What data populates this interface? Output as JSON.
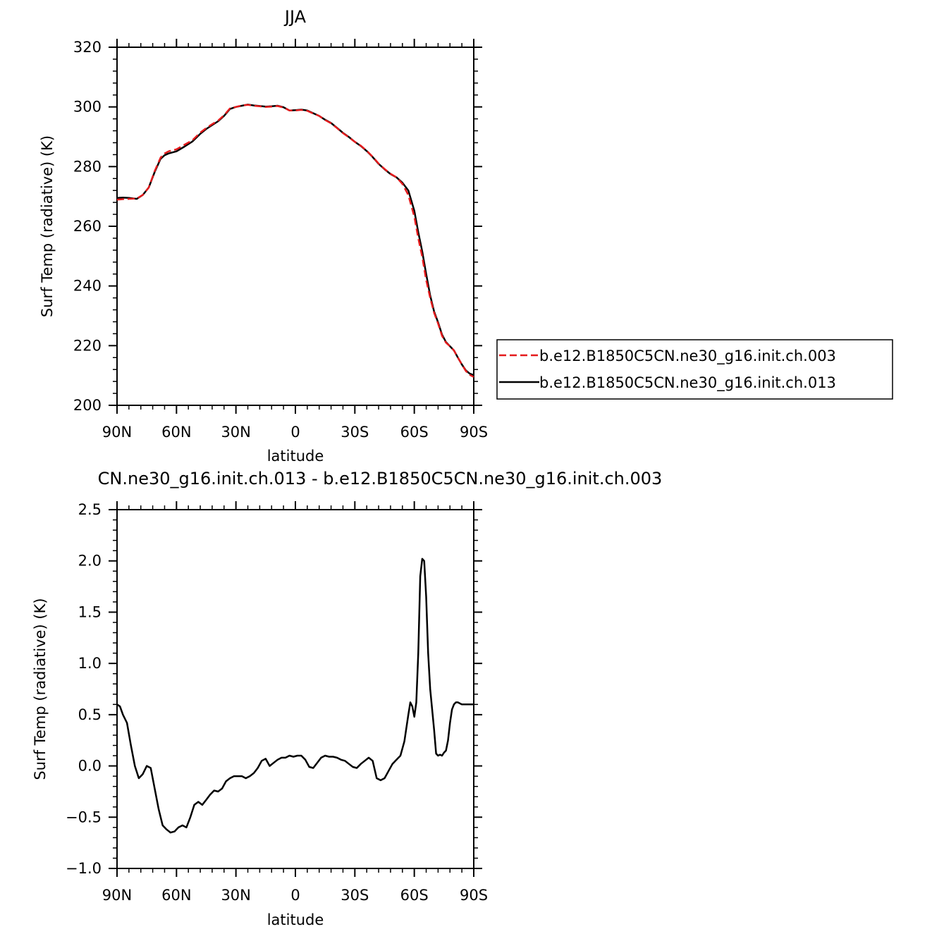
{
  "chart_data": [
    {
      "type": "line",
      "title": "JJA",
      "xlabel": "latitude",
      "ylabel": "Surf Temp (radiative) (K)",
      "xlim": [
        90,
        -90
      ],
      "ylim": [
        200,
        320
      ],
      "x_ticks": [
        90,
        60,
        30,
        0,
        -30,
        -60,
        -90
      ],
      "x_tick_labels": [
        "90N",
        "60N",
        "30N",
        "0",
        "30S",
        "60S",
        "90S"
      ],
      "y_ticks": [
        200,
        220,
        240,
        260,
        280,
        300,
        320
      ],
      "y_tick_labels": [
        "200",
        "220",
        "240",
        "260",
        "280",
        "300",
        "320"
      ],
      "legend_position": "outside-right",
      "series": [
        {
          "name": "b.e12.B1850C5CN.ne30_g16.init.ch.003",
          "color": "#e41a1c",
          "style": "dashed",
          "x": [
            90,
            87,
            84,
            80,
            77,
            74,
            71,
            68,
            66,
            64,
            60,
            56,
            52,
            48,
            45,
            42,
            39,
            36,
            33,
            30,
            27,
            24,
            21,
            18,
            15,
            12,
            9,
            6,
            3,
            0,
            -3,
            -6,
            -9,
            -12,
            -15,
            -18,
            -21,
            -24,
            -27,
            -30,
            -33,
            -36,
            -39,
            -42,
            -45,
            -48,
            -51,
            -54,
            -57,
            -60,
            -62,
            -64,
            -66,
            -68,
            -70,
            -72,
            -74,
            -76,
            -78,
            -80,
            -82,
            -84,
            -86,
            -88,
            -90
          ],
          "y": [
            268.9,
            269.1,
            269.2,
            269.3,
            270.5,
            273.0,
            278.5,
            283.0,
            284.4,
            285.1,
            285.8,
            287.3,
            288.8,
            291.4,
            292.9,
            294.2,
            295.4,
            297.2,
            299.5,
            300.0,
            300.5,
            300.7,
            300.4,
            300.2,
            300.0,
            300.1,
            300.3,
            299.8,
            298.8,
            298.8,
            299.0,
            298.7,
            297.8,
            297.0,
            295.6,
            294.5,
            292.9,
            291.2,
            289.8,
            288.3,
            287.0,
            285.3,
            283.3,
            281.0,
            279.2,
            277.6,
            276.4,
            274.2,
            270.5,
            263.2,
            256.0,
            249.8,
            242.0,
            236.0,
            231.0,
            227.4,
            223.3,
            221.0,
            219.8,
            218.4,
            216.0,
            213.7,
            211.5,
            210.2,
            209.5
          ]
        },
        {
          "name": "b.e12.B1850C5CN.ne30_g16.init.ch.013",
          "color": "#000000",
          "style": "solid",
          "x": [
            90,
            87,
            84,
            80,
            77,
            74,
            71,
            68,
            66,
            64,
            60,
            56,
            52,
            48,
            45,
            42,
            39,
            36,
            33,
            30,
            27,
            24,
            21,
            18,
            15,
            12,
            9,
            6,
            3,
            0,
            -3,
            -6,
            -9,
            -12,
            -15,
            -18,
            -21,
            -24,
            -27,
            -30,
            -33,
            -36,
            -39,
            -42,
            -45,
            -48,
            -51,
            -54,
            -57,
            -60,
            -62,
            -64,
            -66,
            -68,
            -70,
            -72,
            -74,
            -76,
            -78,
            -80,
            -82,
            -84,
            -86,
            -88,
            -90
          ],
          "y": [
            269.5,
            269.6,
            269.5,
            269.2,
            270.5,
            273.0,
            278.2,
            282.6,
            283.8,
            284.4,
            285.1,
            286.7,
            288.4,
            291.0,
            292.6,
            293.9,
            295.2,
            297.0,
            299.3,
            300.0,
            300.4,
            300.8,
            300.5,
            300.3,
            300.1,
            300.2,
            300.4,
            299.9,
            298.8,
            298.9,
            299.1,
            298.8,
            297.9,
            297.0,
            295.7,
            294.6,
            293.0,
            291.3,
            289.9,
            288.3,
            286.9,
            285.2,
            283.2,
            280.9,
            279.1,
            277.5,
            276.4,
            274.6,
            272.0,
            265.2,
            258.0,
            251.6,
            244.0,
            236.8,
            231.4,
            227.8,
            223.7,
            221.2,
            219.8,
            218.4,
            216.0,
            213.7,
            211.7,
            210.6,
            210.1
          ]
        }
      ]
    },
    {
      "type": "line",
      "title": "CN.ne30_g16.init.ch.013 - b.e12.B1850C5CN.ne30_g16.init.ch.003",
      "xlabel": "latitude",
      "ylabel": "Surf Temp (radiative) (K)",
      "xlim": [
        90,
        -90
      ],
      "ylim": [
        -1.0,
        2.5
      ],
      "x_ticks": [
        90,
        60,
        30,
        0,
        -30,
        -60,
        -90
      ],
      "x_tick_labels": [
        "90N",
        "60N",
        "30N",
        "0",
        "30S",
        "60S",
        "90S"
      ],
      "y_ticks": [
        -1.0,
        -0.5,
        0.0,
        0.5,
        1.0,
        1.5,
        2.0,
        2.5
      ],
      "y_tick_labels": [
        "−1.0",
        "−0.5",
        "0.0",
        "0.5",
        "1.0",
        "1.5",
        "2.0",
        "2.5"
      ],
      "series": [
        {
          "color": "#000000",
          "style": "solid",
          "x": [
            90,
            88.5,
            87,
            85,
            83,
            81,
            79,
            77,
            75,
            73,
            71,
            69,
            67,
            65,
            63,
            61,
            59,
            57,
            55,
            53,
            51,
            49,
            47,
            45,
            43,
            41,
            39,
            37,
            35,
            33,
            31,
            29,
            27,
            25,
            23,
            21,
            19,
            17,
            15,
            13,
            11,
            9,
            7,
            5,
            3,
            1,
            -1,
            -3,
            -5,
            -7,
            -9,
            -11,
            -13,
            -15,
            -17,
            -19,
            -21,
            -23,
            -25,
            -27,
            -29,
            -31,
            -33,
            -35,
            -37,
            -39,
            -41,
            -43,
            -45,
            -47,
            -49,
            -51,
            -53,
            -55,
            -57,
            -58,
            -59,
            -60,
            -61,
            -62,
            -63,
            -64,
            -65,
            -66,
            -67,
            -68,
            -69,
            -70,
            -71,
            -72,
            -73,
            -74,
            -75,
            -76,
            -77,
            -78,
            -79,
            -80,
            -81,
            -82,
            -83,
            -84,
            -85,
            -86,
            -87,
            -88,
            -89,
            -90
          ],
          "y": [
            0.6,
            0.58,
            0.5,
            0.42,
            0.2,
            0.0,
            -0.12,
            -0.08,
            0.0,
            -0.02,
            -0.22,
            -0.42,
            -0.58,
            -0.62,
            -0.65,
            -0.64,
            -0.6,
            -0.58,
            -0.6,
            -0.5,
            -0.38,
            -0.35,
            -0.38,
            -0.33,
            -0.28,
            -0.24,
            -0.25,
            -0.22,
            -0.15,
            -0.12,
            -0.1,
            -0.1,
            -0.1,
            -0.12,
            -0.1,
            -0.07,
            -0.02,
            0.05,
            0.07,
            0.0,
            0.03,
            0.06,
            0.08,
            0.08,
            0.1,
            0.09,
            0.1,
            0.1,
            0.06,
            -0.01,
            -0.02,
            0.03,
            0.08,
            0.1,
            0.09,
            0.09,
            0.08,
            0.06,
            0.05,
            0.02,
            -0.01,
            -0.02,
            0.02,
            0.05,
            0.08,
            0.05,
            -0.12,
            -0.14,
            -0.12,
            -0.05,
            0.02,
            0.06,
            0.1,
            0.24,
            0.5,
            0.62,
            0.58,
            0.48,
            0.62,
            1.1,
            1.85,
            2.02,
            2.0,
            1.65,
            1.1,
            0.75,
            0.55,
            0.35,
            0.12,
            0.1,
            0.11,
            0.1,
            0.13,
            0.15,
            0.25,
            0.42,
            0.55,
            0.6,
            0.62,
            0.62,
            0.61,
            0.6,
            0.6,
            0.6,
            0.6,
            0.6,
            0.6,
            0.6
          ]
        }
      ]
    }
  ]
}
